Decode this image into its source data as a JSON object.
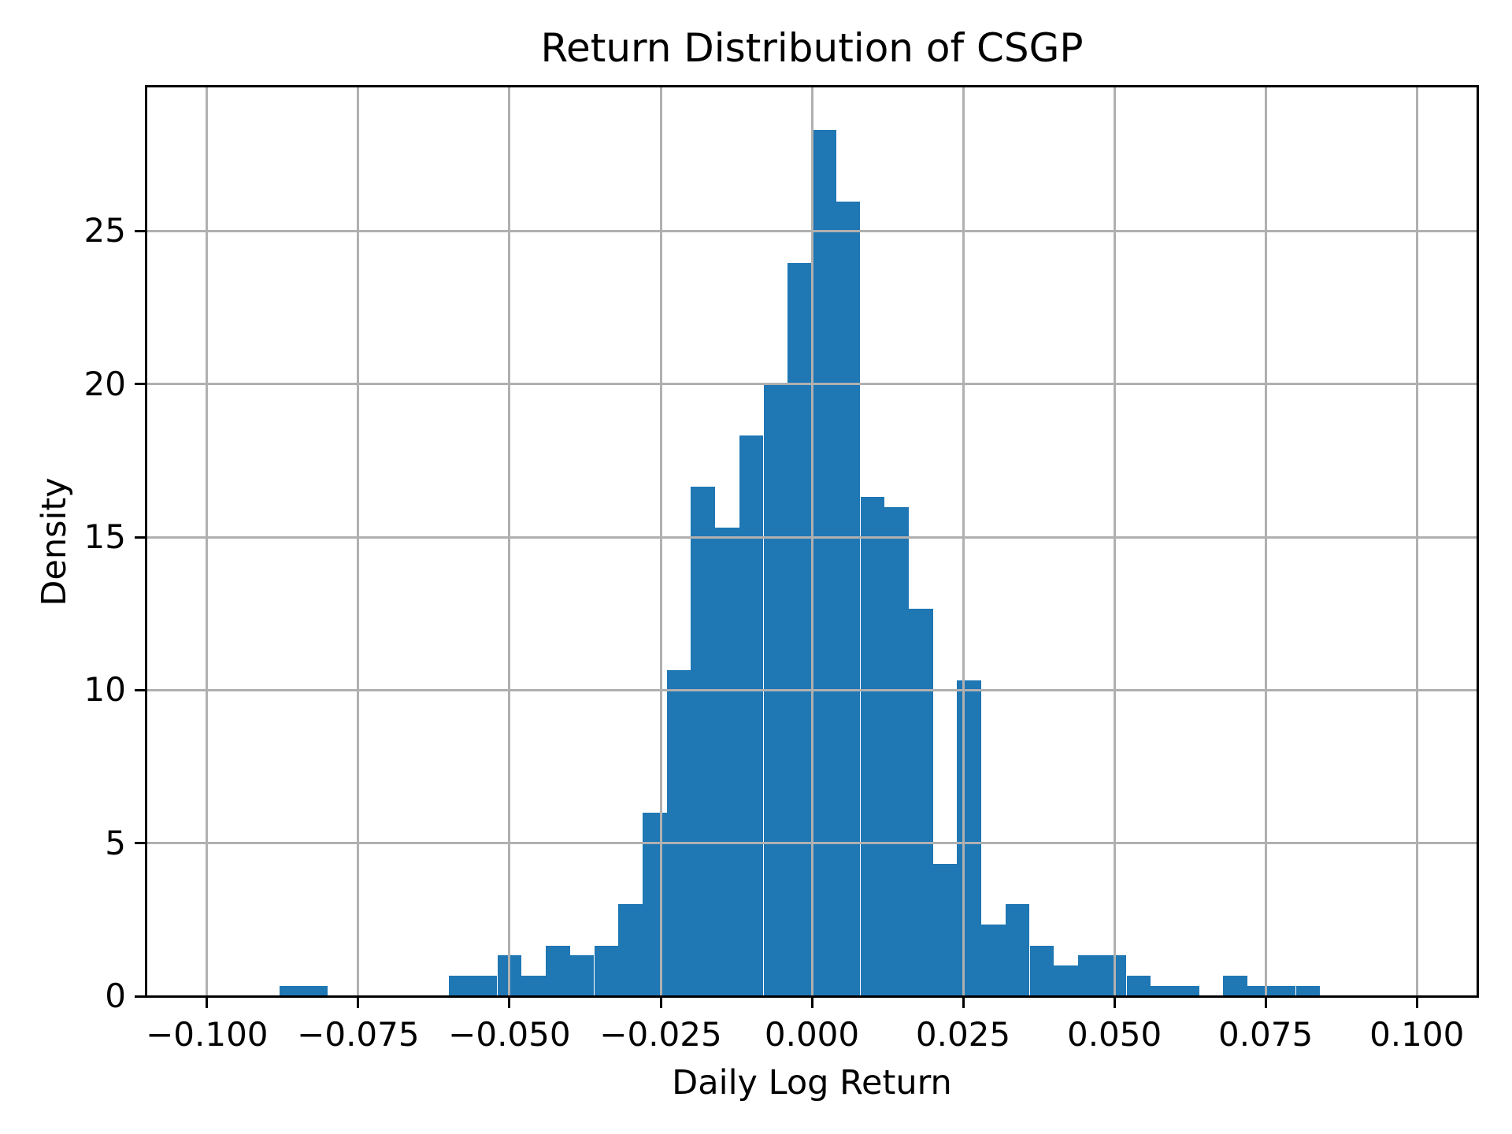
{
  "chart_data": {
    "type": "bar",
    "subtype": "histogram",
    "title": "Return Distribution of CSGP",
    "xlabel": "Daily Log Return",
    "ylabel": "Density",
    "legend": null,
    "grid": true,
    "grid_above_bars": true,
    "colors": {
      "bar": "#1f77b4",
      "grid": "#b0b0b0",
      "axis": "#000000",
      "text": "#000000",
      "background": "#ffffff"
    },
    "xlim": [
      -0.11,
      0.11
    ],
    "ylim": [
      0,
      29.72
    ],
    "bin_start": -0.088,
    "bin_width": 0.004,
    "n_bins": 43,
    "bin_edges": [
      -0.088,
      -0.084,
      -0.08,
      -0.076,
      -0.072,
      -0.068,
      -0.064,
      -0.06,
      -0.056,
      -0.052,
      -0.048,
      -0.044,
      -0.04,
      -0.036,
      -0.032,
      -0.028,
      -0.024,
      -0.02,
      -0.016,
      -0.012,
      -0.008,
      -0.004,
      0.0,
      0.004,
      0.008,
      0.012,
      0.016,
      0.02,
      0.024,
      0.028,
      0.032,
      0.036,
      0.04,
      0.044,
      0.048,
      0.052,
      0.056,
      0.06,
      0.064,
      0.068,
      0.072,
      0.076,
      0.08,
      0.084
    ],
    "densities": [
      0.33,
      0.33,
      0,
      0,
      0,
      0,
      0,
      0.67,
      0.67,
      1.33,
      0.67,
      1.66,
      1.33,
      1.66,
      3.0,
      5.99,
      10.65,
      16.64,
      15.31,
      18.31,
      19.97,
      23.97,
      28.3,
      25.97,
      16.31,
      15.98,
      12.65,
      4.33,
      10.32,
      2.33,
      3.0,
      1.66,
      1.0,
      1.33,
      1.33,
      0.67,
      0.33,
      0.33,
      0,
      0.67,
      0.33,
      0.33,
      0.33
    ],
    "xticks": [
      {
        "value": -0.1,
        "label": "−0.100"
      },
      {
        "value": -0.075,
        "label": "−0.075"
      },
      {
        "value": -0.05,
        "label": "−0.050"
      },
      {
        "value": -0.025,
        "label": "−0.025"
      },
      {
        "value": 0.0,
        "label": "0.000"
      },
      {
        "value": 0.025,
        "label": "0.025"
      },
      {
        "value": 0.05,
        "label": "0.050"
      },
      {
        "value": 0.075,
        "label": "0.075"
      },
      {
        "value": 0.1,
        "label": "0.100"
      }
    ],
    "yticks": [
      {
        "value": 0,
        "label": "0"
      },
      {
        "value": 5,
        "label": "5"
      },
      {
        "value": 10,
        "label": "10"
      },
      {
        "value": 15,
        "label": "15"
      },
      {
        "value": 20,
        "label": "20"
      },
      {
        "value": 25,
        "label": "25"
      }
    ]
  }
}
